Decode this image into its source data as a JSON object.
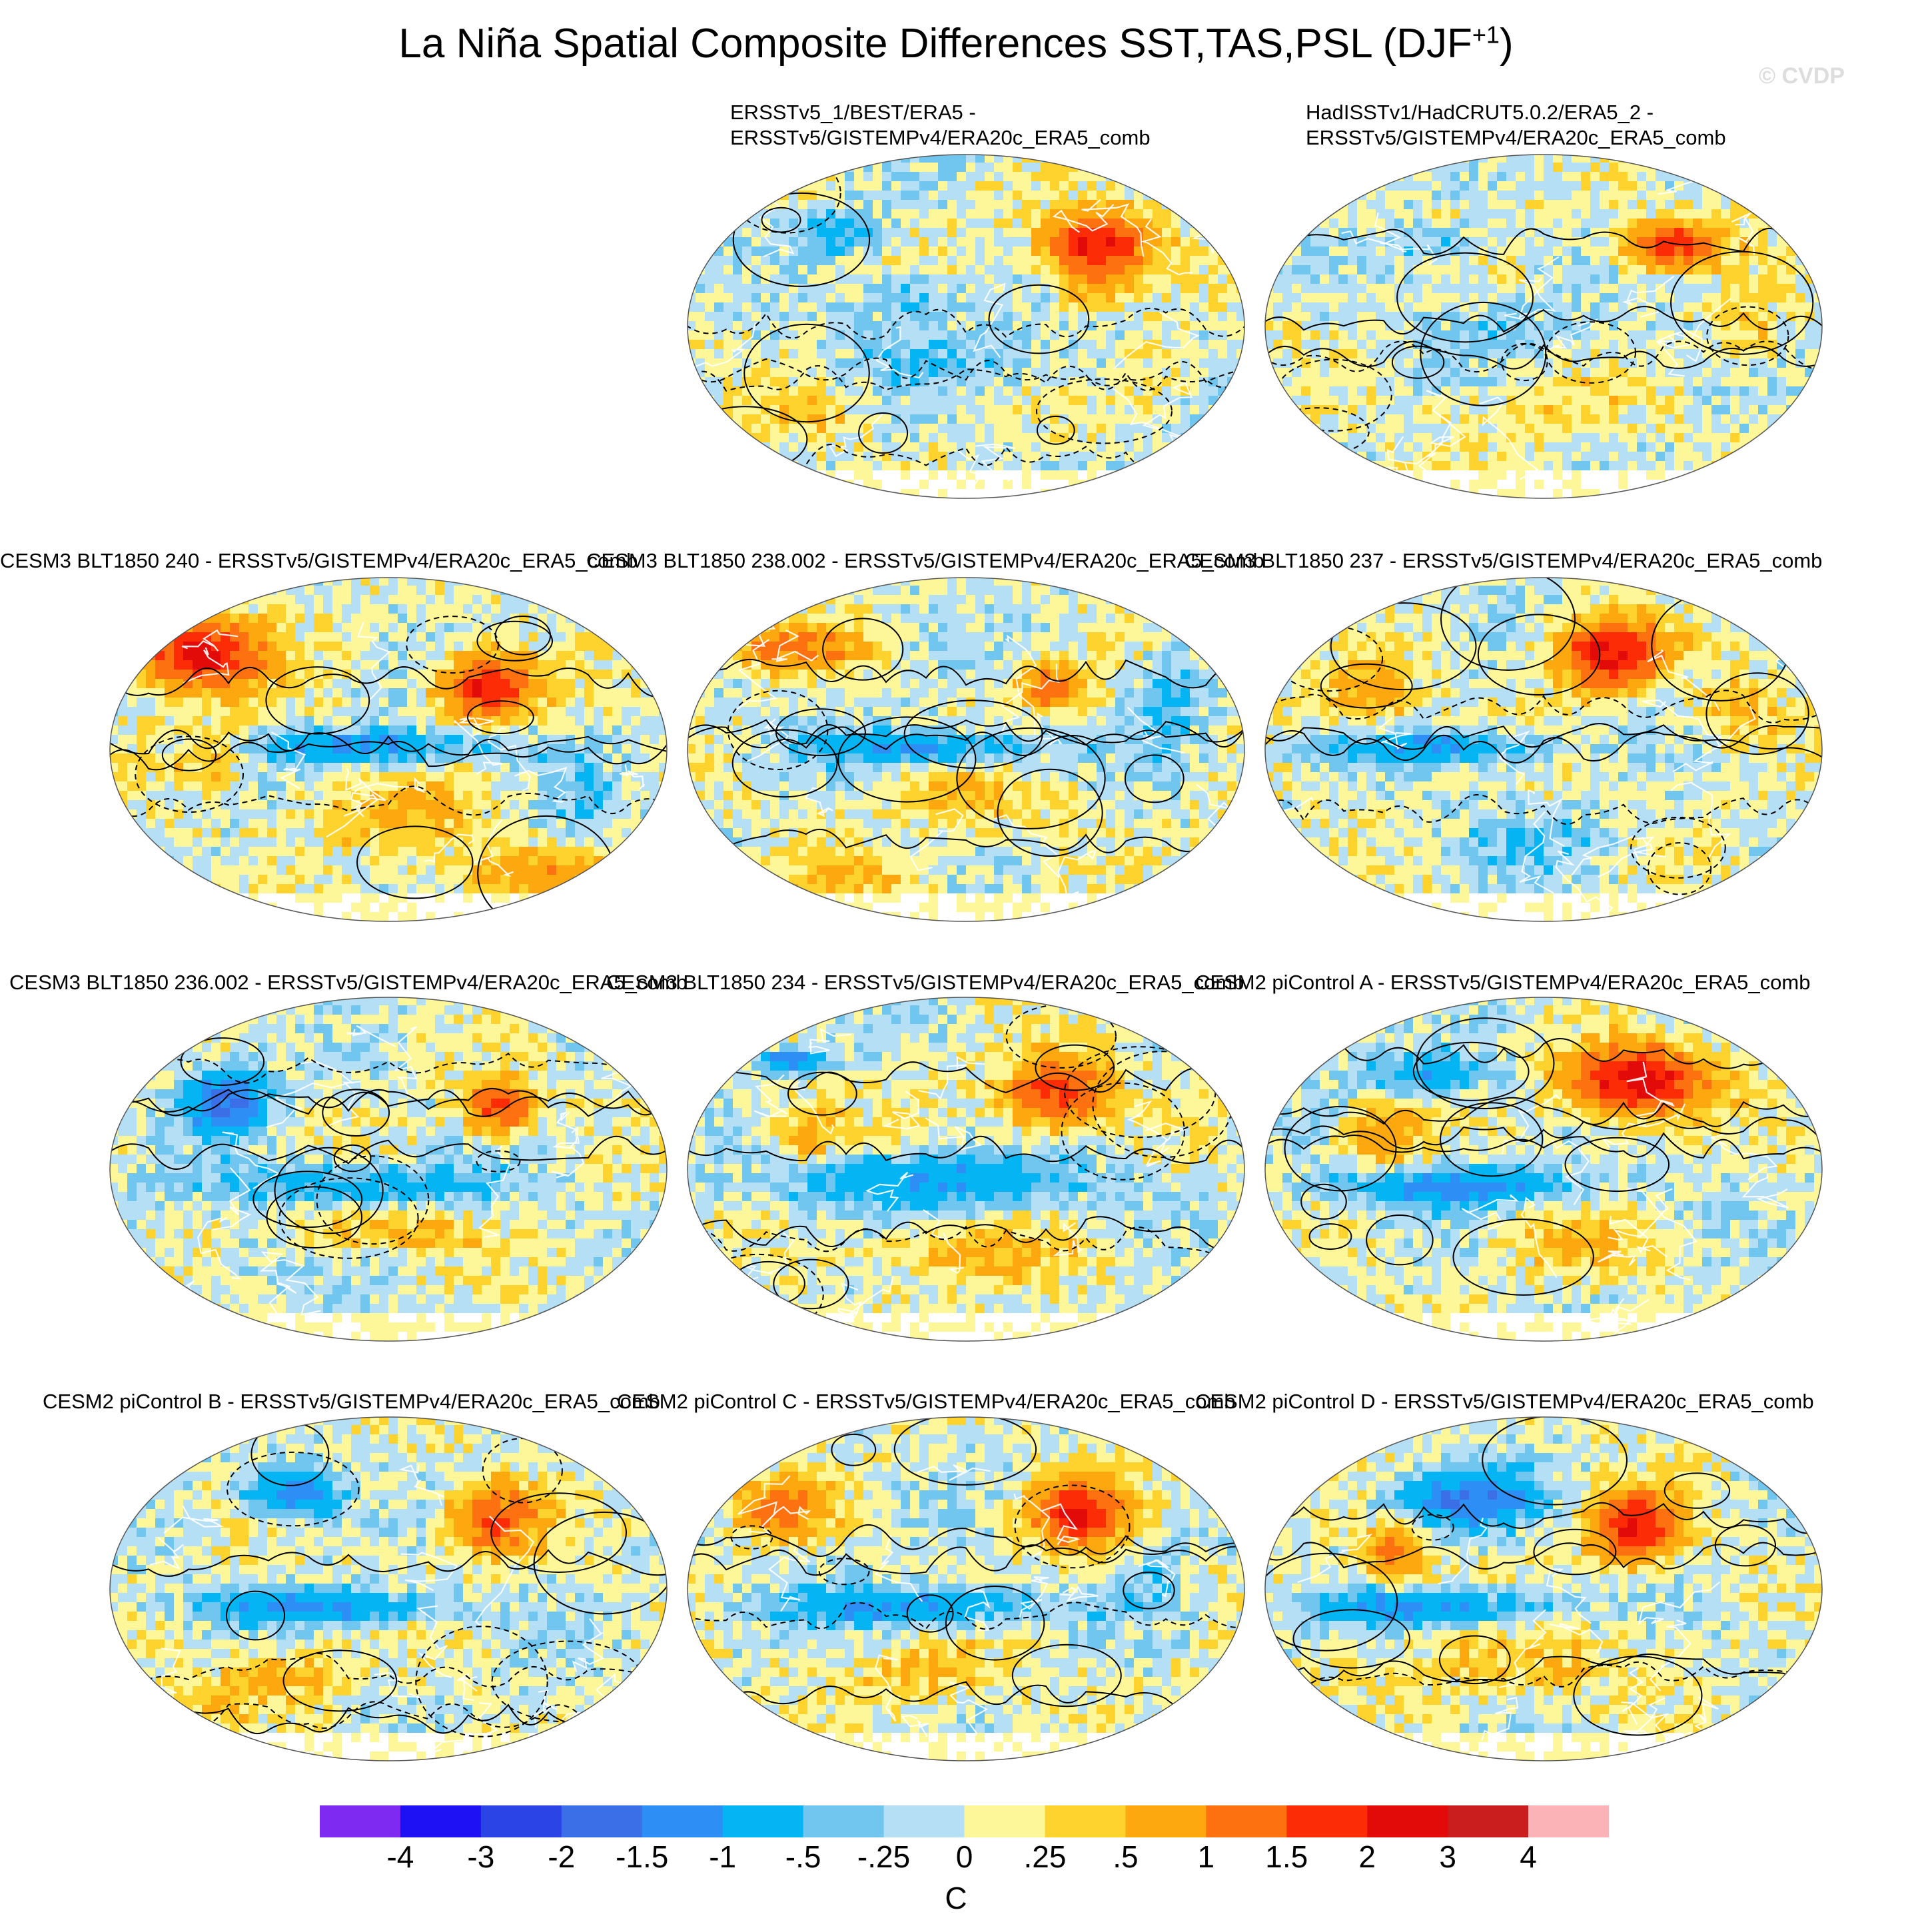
{
  "title": {
    "main": "La Niña Spatial Composite Differences SST,TAS,PSL (DJF",
    "sup": "+1",
    "close": ")"
  },
  "watermark": "© CVDP",
  "panels": [
    {
      "title_lines": [
        "ERSSTv5_1/BEST/ERA5 -",
        "ERSSTv5/GISTEMPv4/ERA20c_ERA5_comb"
      ]
    },
    {
      "title_lines": [
        "HadISSTv1/HadCRUT5.0.2/ERA5_2 -",
        "ERSSTv5/GISTEMPv4/ERA20c_ERA5_comb"
      ]
    },
    {
      "title_lines": [
        "CESM3 BLT1850 240 - ERSSTv5/GISTEMPv4/ERA20c_ERA5_comb"
      ]
    },
    {
      "title_lines": [
        "CESM3 BLT1850 238.002 - ERSSTv5/GISTEMPv4/ERA20c_ERA5_comb"
      ]
    },
    {
      "title_lines": [
        "CESM3 BLT1850 237 - ERSSTv5/GISTEMPv4/ERA20c_ERA5_comb"
      ]
    },
    {
      "title_lines": [
        "CESM3 BLT1850 236.002 - ERSSTv5/GISTEMPv4/ERA20c_ERA5_comb"
      ]
    },
    {
      "title_lines": [
        "CESM3 BLT1850 234 - ERSSTv5/GISTEMPv4/ERA20c_ERA5_comb"
      ]
    },
    {
      "title_lines": [
        "CESM2 piControl A - ERSSTv5/GISTEMPv4/ERA20c_ERA5_comb"
      ]
    },
    {
      "title_lines": [
        "CESM2 piControl B - ERSSTv5/GISTEMPv4/ERA20c_ERA5_comb"
      ]
    },
    {
      "title_lines": [
        "CESM2 piControl C - ERSSTv5/GISTEMPv4/ERA20c_ERA5_comb"
      ]
    },
    {
      "title_lines": [
        "CESM2 piControl D - ERSSTv5/GISTEMPv4/ERA20c_ERA5_comb"
      ]
    }
  ],
  "chart_data": {
    "type": "heatmap",
    "description_free_title": "La Niña Spatial Composite Differences SST,TAS,PSL (DJF+1)",
    "projection": "global map panels, filled temperature difference with PSL contours",
    "colorbar": {
      "unit": "C",
      "levels": [
        "-4",
        "-3",
        "-2",
        "-1.5",
        "-1",
        "-.5",
        "-.25",
        "0",
        ".25",
        ".5",
        "1",
        "1.5",
        "2",
        "3",
        "4"
      ],
      "colors": [
        "#7f2af0",
        "#1e12f5",
        "#2a44e6",
        "#3b6fe8",
        "#2d8ff5",
        "#05b4f2",
        "#71c6ef",
        "#b4dff4",
        "#fdf79a",
        "#fed32e",
        "#fda80f",
        "#fd7110",
        "#fc2d06",
        "#e30b0a",
        "#c91d1e",
        "#fbb3b7"
      ]
    },
    "panels": [
      "ERSSTv5_1/BEST/ERA5 - ERSSTv5/GISTEMPv4/ERA20c_ERA5_comb",
      "HadISSTv1/HadCRUT5.0.2/ERA5_2 - ERSSTv5/GISTEMPv4/ERA20c_ERA5_comb",
      "CESM3 BLT1850 240 - ERSSTv5/GISTEMPv4/ERA20c_ERA5_comb",
      "CESM3 BLT1850 238.002 - ERSSTv5/GISTEMPv4/ERA20c_ERA5_comb",
      "CESM3 BLT1850 237 - ERSSTv5/GISTEMPv4/ERA20c_ERA5_comb",
      "CESM3 BLT1850 236.002 - ERSSTv5/GISTEMPv4/ERA20c_ERA5_comb",
      "CESM3 BLT1850 234 - ERSSTv5/GISTEMPv4/ERA20c_ERA5_comb",
      "CESM2 piControl A - ERSSTv5/GISTEMPv4/ERA20c_ERA5_comb",
      "CESM2 piControl B - ERSSTv5/GISTEMPv4/ERA20c_ERA5_comb",
      "CESM2 piControl C - ERSSTv5/GISTEMPv4/ERA20c_ERA5_comb",
      "CESM2 piControl D - ERSSTv5/GISTEMPv4/ERA20c_ERA5_comb"
    ]
  }
}
